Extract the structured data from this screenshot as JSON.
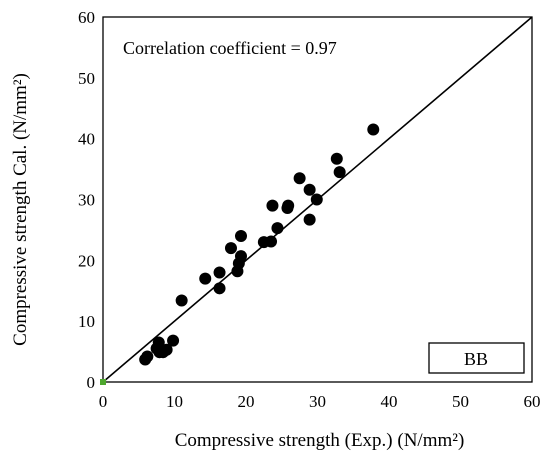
{
  "chart_data": {
    "type": "scatter",
    "title": "",
    "xlabel": "Compressive strength (Exp.) (N/mm²)",
    "ylabel": "Compressive strength Cal.  (N/mm²)",
    "xlim": [
      0,
      60
    ],
    "ylim": [
      0,
      60
    ],
    "xticks": [
      0,
      10,
      20,
      30,
      40,
      50,
      60
    ],
    "yticks": [
      0,
      10,
      20,
      30,
      40,
      50,
      60
    ],
    "grid": false,
    "annotation": "Correlation coefficient  = 0.97",
    "label_box": "BB",
    "reference_line": {
      "from": [
        0,
        0
      ],
      "to": [
        60,
        60
      ]
    },
    "origin_marker_color": "#4ea72e",
    "point_color": "#000000",
    "series": [
      {
        "points": [
          [
            37.8,
            41.5
          ],
          [
            32.7,
            36.7
          ],
          [
            33.1,
            34.5
          ],
          [
            27.5,
            33.5
          ],
          [
            28.9,
            31.6
          ],
          [
            29.9,
            30.0
          ],
          [
            23.7,
            29.0
          ],
          [
            25.9,
            29.0
          ],
          [
            25.8,
            28.6
          ],
          [
            28.9,
            26.7
          ],
          [
            24.4,
            25.3
          ],
          [
            19.3,
            24.0
          ],
          [
            22.5,
            23.0
          ],
          [
            23.5,
            23.1
          ],
          [
            17.9,
            22.0
          ],
          [
            19.3,
            20.7
          ],
          [
            19.0,
            19.5
          ],
          [
            18.8,
            18.2
          ],
          [
            16.3,
            18.0
          ],
          [
            14.3,
            17.0
          ],
          [
            16.3,
            15.4
          ],
          [
            11.0,
            13.4
          ],
          [
            9.8,
            6.8
          ],
          [
            7.8,
            6.5
          ],
          [
            7.5,
            5.5
          ],
          [
            8.9,
            5.3
          ],
          [
            7.9,
            4.9
          ],
          [
            8.4,
            4.9
          ],
          [
            6.2,
            4.2
          ],
          [
            5.9,
            3.7
          ]
        ]
      }
    ]
  }
}
